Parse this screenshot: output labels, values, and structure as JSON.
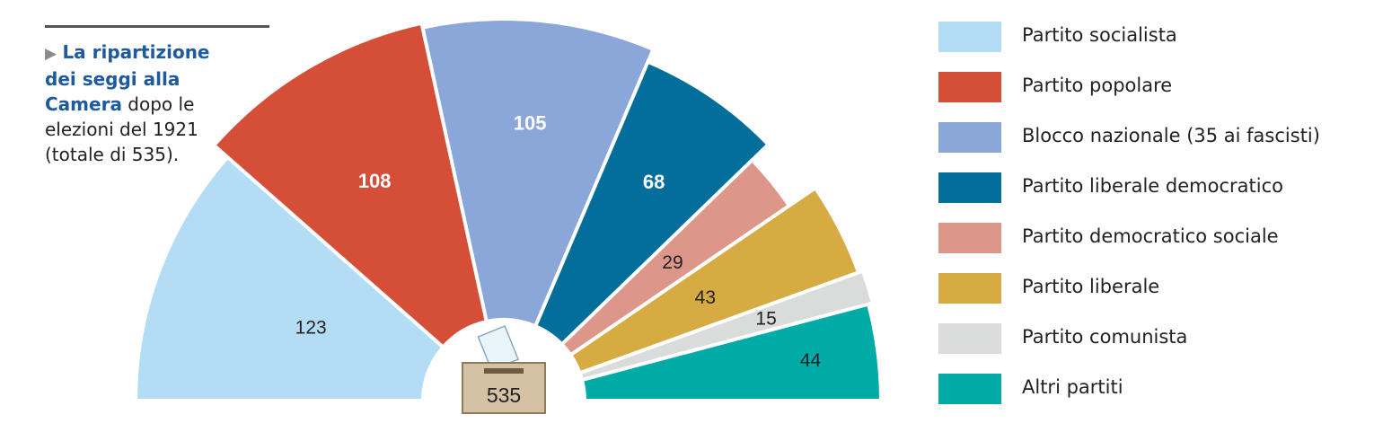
{
  "caption": {
    "lead": "La ripartizione dei seggi alla Camera",
    "rest": "dopo le elezioni del 1921 (totale di 535)."
  },
  "chart_data": {
    "type": "pie",
    "variant": "semicircle",
    "total_label": "535",
    "total_icon": "ballot-box-icon",
    "legend_position": "right",
    "series": [
      {
        "name": "Partito socialista",
        "value": 123,
        "label": "123",
        "color": "#b2ddf5",
        "label_color": "#222222"
      },
      {
        "name": "Partito popolare",
        "value": 108,
        "label": "108",
        "color": "#d44e38",
        "label_color": "#ffffff"
      },
      {
        "name": "Blocco nazionale (35 ai fascisti)",
        "value": 105,
        "label": "105",
        "color": "#8ba6d8",
        "label_color": "#ffffff"
      },
      {
        "name": "Partito liberale democratico",
        "value": 68,
        "label": "68",
        "color": "#046e9a",
        "label_color": "#ffffff"
      },
      {
        "name": "Partito democratico sociale",
        "value": 29,
        "label": "29",
        "color": "#dc978a",
        "label_color": "#222222"
      },
      {
        "name": "Partito liberale",
        "value": 43,
        "label": "43",
        "color": "#d6ac42",
        "label_color": "#222222"
      },
      {
        "name": "Partito comunista",
        "value": 15,
        "label": "15",
        "color": "#dadbdb",
        "label_color": "#222222"
      },
      {
        "name": "Altri partiti",
        "value": 44,
        "label": "44",
        "color": "#00aba6",
        "label_color": "#222222"
      }
    ]
  }
}
